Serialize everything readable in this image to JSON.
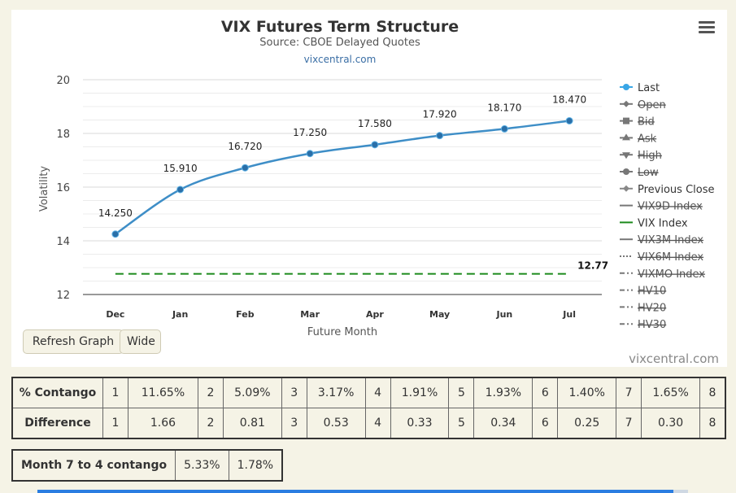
{
  "chart_data": {
    "type": "line",
    "title": "VIX Futures Term Structure",
    "subtitle": "Source: CBOE Delayed Quotes",
    "source_link": "vixcentral.com",
    "xlabel": "Future Month",
    "ylabel": "Volatility",
    "categories": [
      "Dec",
      "Jan",
      "Feb",
      "Mar",
      "Apr",
      "May",
      "Jun",
      "Jul"
    ],
    "ylim": [
      12,
      20
    ],
    "yticks": [
      "12",
      "14",
      "16",
      "18",
      "20"
    ],
    "series": [
      {
        "name": "Last",
        "values": [
          14.25,
          15.91,
          16.72,
          17.25,
          17.58,
          17.92,
          18.17,
          18.47
        ],
        "labels": [
          "14.250",
          "15.910",
          "16.720",
          "17.250",
          "17.580",
          "17.920",
          "18.170",
          "18.470"
        ],
        "color": "#3e8ec7"
      },
      {
        "name": "VIX Index",
        "values": [
          12.77,
          12.77,
          12.77,
          12.77,
          12.77,
          12.77,
          12.77,
          12.77
        ],
        "end_label": "12.77",
        "color": "#1c8a1c",
        "dashed": true
      }
    ],
    "legend": {
      "position": "right",
      "items": [
        {
          "name": "Last",
          "symbol": "circle",
          "enabled": true
        },
        {
          "name": "Open",
          "symbol": "diamond",
          "enabled": false
        },
        {
          "name": "Bid",
          "symbol": "square",
          "enabled": false
        },
        {
          "name": "Ask",
          "symbol": "triangle",
          "enabled": false
        },
        {
          "name": "High",
          "symbol": "triangle-down",
          "enabled": false
        },
        {
          "name": "Low",
          "symbol": "circle",
          "enabled": false
        },
        {
          "name": "Previous Close",
          "symbol": "diamond",
          "enabled": true
        },
        {
          "name": "VIX9D Index",
          "symbol": "line",
          "enabled": false
        },
        {
          "name": "VIX Index",
          "symbol": "line-green",
          "enabled": true
        },
        {
          "name": "VIX3M Index",
          "symbol": "line",
          "enabled": false
        },
        {
          "name": "VIX6M Index",
          "symbol": "dotted",
          "enabled": false
        },
        {
          "name": "VIXMO Index",
          "symbol": "dashdot",
          "enabled": false
        },
        {
          "name": "HV10",
          "symbol": "dashdot",
          "enabled": false
        },
        {
          "name": "HV20",
          "symbol": "dashdot",
          "enabled": false
        },
        {
          "name": "HV30",
          "symbol": "dashdot",
          "enabled": false
        }
      ]
    },
    "grid": true
  },
  "buttons": {
    "refresh": "Refresh Graph",
    "wide": "Wide"
  },
  "watermark": "vixcentral.com",
  "contango_table": {
    "rows": [
      {
        "header": "% Contango",
        "cells": [
          "1",
          "11.65%",
          "2",
          "5.09%",
          "3",
          "3.17%",
          "4",
          "1.91%",
          "5",
          "1.93%",
          "6",
          "1.40%",
          "7",
          "1.65%",
          "8"
        ]
      },
      {
        "header": "Difference",
        "cells": [
          "1",
          "1.66",
          "2",
          "0.81",
          "3",
          "0.53",
          "4",
          "0.33",
          "5",
          "0.34",
          "6",
          "0.25",
          "7",
          "0.30",
          "8"
        ]
      }
    ]
  },
  "month_table": {
    "header": "Month 7 to 4 contango",
    "values": [
      "5.33%",
      "1.78%"
    ]
  }
}
